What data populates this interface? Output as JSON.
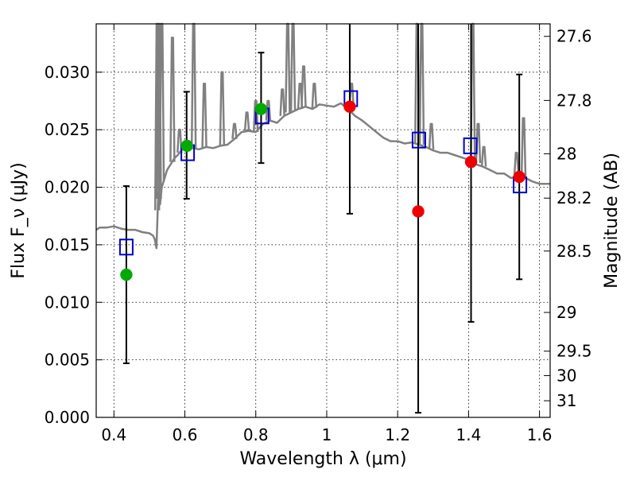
{
  "chart_data": {
    "type": "scatter",
    "xlabel": "Wavelength λ (μm)",
    "ylabel": "Flux F_ν (μJy)",
    "y2label": "Magnitude (AB)",
    "xlim": [
      0.35,
      1.63
    ],
    "ylim": [
      0.0,
      0.0342
    ],
    "grid": true,
    "x_ticks": [
      0.4,
      0.6,
      0.8,
      1.0,
      1.2,
      1.4,
      1.6
    ],
    "x_tick_labels": [
      "0.4",
      "0.6",
      "0.8",
      "1",
      "1.2",
      "1.4",
      "1.6"
    ],
    "y_ticks": [
      0.0,
      0.005,
      0.01,
      0.015,
      0.02,
      0.025,
      0.03
    ],
    "y_tick_labels": [
      "0.000",
      "0.005",
      "0.010",
      "0.015",
      "0.020",
      "0.025",
      "0.030"
    ],
    "y2_ticks": [
      27.6,
      27.8,
      28,
      28.2,
      28.5,
      29,
      29.5,
      30,
      31
    ],
    "y2_tick_labels": [
      "27.6",
      "27.8",
      "28",
      "28.2",
      "28.5",
      "29",
      "29.5",
      "30",
      "31"
    ],
    "colors": {
      "model": "#808080",
      "model_points": "#0000cc",
      "optical": "#00aa00",
      "nir": "#ee0000",
      "errorbar": "#000000"
    },
    "model_spectrum": {
      "x": [
        0.35,
        0.36,
        0.38,
        0.4,
        0.42,
        0.44,
        0.46,
        0.48,
        0.5,
        0.51,
        0.515,
        0.52,
        0.525,
        0.53,
        0.535,
        0.54,
        0.55,
        0.56,
        0.57,
        0.58,
        0.59,
        0.6,
        0.62,
        0.64,
        0.66,
        0.68,
        0.7,
        0.72,
        0.74,
        0.76,
        0.78,
        0.8,
        0.82,
        0.84,
        0.86,
        0.88,
        0.9,
        0.92,
        0.94,
        0.96,
        0.98,
        1.0,
        1.02,
        1.04,
        1.06,
        1.08,
        1.1,
        1.12,
        1.14,
        1.16,
        1.18,
        1.2,
        1.22,
        1.24,
        1.26,
        1.28,
        1.3,
        1.32,
        1.34,
        1.36,
        1.38,
        1.4,
        1.42,
        1.44,
        1.46,
        1.48,
        1.5,
        1.52,
        1.54,
        1.56,
        1.58,
        1.6,
        1.63
      ],
      "y": [
        0.0163,
        0.0165,
        0.0165,
        0.0166,
        0.0164,
        0.0163,
        0.0163,
        0.0161,
        0.016,
        0.0158,
        0.0155,
        0.0147,
        0.0195,
        0.0185,
        0.02,
        0.0205,
        0.0215,
        0.022,
        0.0225,
        0.0228,
        0.0232,
        0.0236,
        0.0234,
        0.0233,
        0.0235,
        0.0234,
        0.0236,
        0.0237,
        0.0242,
        0.0248,
        0.0249,
        0.0248,
        0.0255,
        0.0258,
        0.0256,
        0.0262,
        0.0265,
        0.0268,
        0.027,
        0.0268,
        0.0272,
        0.0271,
        0.027,
        0.0273,
        0.0268,
        0.0262,
        0.0258,
        0.0253,
        0.0248,
        0.0243,
        0.024,
        0.024,
        0.0238,
        0.0239,
        0.0237,
        0.0235,
        0.0232,
        0.023,
        0.023,
        0.0228,
        0.0226,
        0.0224,
        0.022,
        0.0218,
        0.0215,
        0.0212,
        0.0212,
        0.0208,
        0.021,
        0.0208,
        0.0205,
        0.0203,
        0.0203
      ]
    },
    "emission_lines": [
      {
        "x": 0.522,
        "base": 0.018,
        "peak": 0.0342
      },
      {
        "x": 0.527,
        "base": 0.019,
        "peak": 0.0342
      },
      {
        "x": 0.535,
        "base": 0.0205,
        "peak": 0.0342
      },
      {
        "x": 0.565,
        "base": 0.0222,
        "peak": 0.033
      },
      {
        "x": 0.585,
        "base": 0.023,
        "peak": 0.025
      },
      {
        "x": 0.625,
        "base": 0.0234,
        "peak": 0.0342
      },
      {
        "x": 0.655,
        "base": 0.0234,
        "peak": 0.029
      },
      {
        "x": 0.705,
        "base": 0.0236,
        "peak": 0.03
      },
      {
        "x": 0.74,
        "base": 0.0242,
        "peak": 0.0255
      },
      {
        "x": 0.775,
        "base": 0.0249,
        "peak": 0.0265
      },
      {
        "x": 0.8,
        "base": 0.0248,
        "peak": 0.0275
      },
      {
        "x": 0.835,
        "base": 0.0258,
        "peak": 0.0275
      },
      {
        "x": 0.875,
        "base": 0.0262,
        "peak": 0.0285
      },
      {
        "x": 0.89,
        "base": 0.0265,
        "peak": 0.0342
      },
      {
        "x": 0.905,
        "base": 0.0266,
        "peak": 0.0342
      },
      {
        "x": 0.925,
        "base": 0.0268,
        "peak": 0.029
      },
      {
        "x": 0.935,
        "base": 0.027,
        "peak": 0.0305
      },
      {
        "x": 0.965,
        "base": 0.0269,
        "peak": 0.029
      },
      {
        "x": 1.07,
        "base": 0.027,
        "peak": 0.029
      },
      {
        "x": 1.255,
        "base": 0.0238,
        "peak": 0.0342
      },
      {
        "x": 1.268,
        "base": 0.0237,
        "peak": 0.0342
      },
      {
        "x": 1.295,
        "base": 0.0233,
        "peak": 0.0255
      },
      {
        "x": 1.412,
        "base": 0.0223,
        "peak": 0.0342
      },
      {
        "x": 1.427,
        "base": 0.0221,
        "peak": 0.0255
      },
      {
        "x": 1.443,
        "base": 0.0218,
        "peak": 0.0235
      },
      {
        "x": 1.535,
        "base": 0.0211,
        "peak": 0.023
      },
      {
        "x": 1.555,
        "base": 0.0208,
        "peak": 0.026
      }
    ],
    "series": [
      {
        "marker": "square",
        "color": "#0000cc",
        "x": [
          0.435,
          0.608,
          0.818,
          1.068,
          1.26,
          1.405,
          1.545
        ],
        "y": [
          0.0148,
          0.023,
          0.0262,
          0.0277,
          0.0241,
          0.0236,
          0.0202
        ]
      },
      {
        "marker": "circle",
        "color": "#00aa00",
        "x": [
          0.435,
          0.606,
          0.815
        ],
        "y": [
          0.0124,
          0.0236,
          0.0268
        ]
      },
      {
        "marker": "circle",
        "color": "#ee0000",
        "x": [
          1.065,
          1.258,
          1.407,
          1.543
        ],
        "y": [
          0.027,
          0.0179,
          0.0222,
          0.0209
        ]
      }
    ],
    "error_bars": [
      {
        "x": 0.435,
        "low": 0.0047,
        "high": 0.0201
      },
      {
        "x": 0.605,
        "low": 0.019,
        "high": 0.0283
      },
      {
        "x": 0.815,
        "low": 0.0221,
        "high": 0.0317
      },
      {
        "x": 1.065,
        "low": 0.0177,
        "high": 0.0342
      },
      {
        "x": 1.258,
        "low": 0.0004,
        "high": 0.0342
      },
      {
        "x": 1.407,
        "low": 0.0083,
        "high": 0.0342
      },
      {
        "x": 1.543,
        "low": 0.012,
        "high": 0.0298
      }
    ]
  }
}
